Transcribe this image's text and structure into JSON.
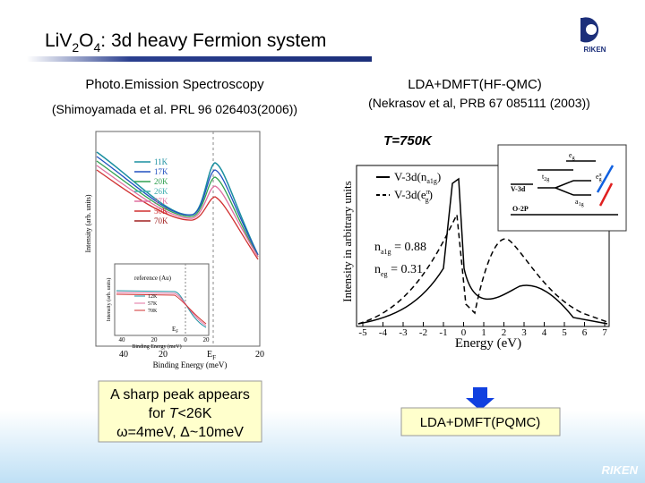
{
  "header": {
    "title": {
      "part1": "LiV",
      "sub1": "2",
      "part2": "O",
      "sub2": "4",
      "part3": ": 3d heavy Fermion system"
    },
    "logo": "RIKEN"
  },
  "left": {
    "heading": "Photo.Emission Spectroscopy",
    "citation": "(Shimoyamada et al. PRL 96 026403(2006))",
    "figure": {
      "y_label": "Intensity (arb. units)",
      "x_label": "Binding Energy (meV)",
      "x_ticks": [
        "40",
        "20",
        "E",
        "20"
      ],
      "ef_sub": "F",
      "legend": [
        "11K",
        "17K",
        "20K",
        "26K",
        "37K",
        "50K",
        "70K"
      ],
      "inset": {
        "title": "reference (Au)",
        "legend": [
          "12K",
          "57K",
          "70K"
        ],
        "x_ticks": [
          "40",
          "20",
          "0",
          "20"
        ],
        "ef": "E",
        "ef_sub": "F",
        "x_label": "Binding Energy (meV)",
        "y_label": "Intensity (arb. units)"
      }
    },
    "note": {
      "line1": "A sharp peak appears",
      "line2_a": "for ",
      "line2_b": "T",
      "line2_c": "<26K",
      "line3": "ω=4meV, Δ~10meV"
    }
  },
  "right": {
    "heading": "LDA+DMFT(HF-QMC)",
    "citation": "(Nekrasov et al, PRB 67 085111 (2003))",
    "temperature": "T=750K",
    "figure": {
      "y_label": "Intensity in arbitrary units",
      "x_label": "Energy (eV)",
      "x_ticks": [
        "-5",
        "-4",
        "-3",
        "-2",
        "-1",
        "0",
        "1",
        "2",
        "3",
        "4",
        "5",
        "6",
        "7"
      ],
      "legend": [
        {
          "main": "V-3d(n",
          "sub": "a1g",
          "end": ")"
        },
        {
          "main": "V-3d(e",
          "sub": "g",
          "sup": "π",
          "end": ")"
        }
      ],
      "occupations": [
        {
          "n": "n",
          "sub": "a1g",
          "value": " = 0.88"
        },
        {
          "n": "n",
          "sub": "eg",
          "value": " = 0.31"
        }
      ],
      "inset": {
        "eg": "e",
        "eg_sub": "g",
        "egpi": "e",
        "egpi_sub": "g",
        "egpi_sup": "π",
        "t2g": "t",
        "t2g_sub": "2g",
        "a1g": "a",
        "a1g_sub": "1g",
        "v3d": "V-3d",
        "o2p": "O-2P"
      }
    },
    "method": "LDA+DMFT(PQMC)"
  },
  "footer": {
    "logo": "RIKEN"
  }
}
